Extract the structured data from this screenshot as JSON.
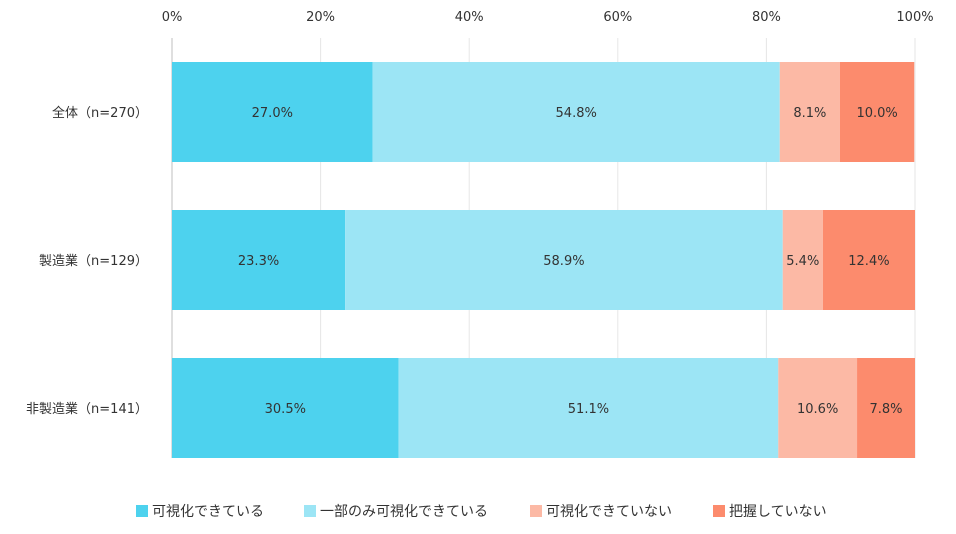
{
  "chart_data": {
    "type": "bar",
    "orientation": "horizontal",
    "stacked": true,
    "title": "",
    "xlabel": "",
    "ylabel": "",
    "xlim": [
      0,
      100
    ],
    "x_ticks": [
      "0%",
      "20%",
      "40%",
      "60%",
      "80%",
      "100%"
    ],
    "grid": true,
    "legend_position": "bottom",
    "categories": [
      "全体（n=270）",
      "製造業（n=129）",
      "非製造業（n=141）"
    ],
    "series": [
      {
        "name": "可視化できている",
        "values": [
          27.0,
          23.3,
          30.5
        ],
        "labels": [
          "27.0%",
          "23.3%",
          "30.5%"
        ],
        "color": "#4dd2ee"
      },
      {
        "name": "一部のみ可視化できている",
        "values": [
          54.8,
          58.9,
          51.1
        ],
        "labels": [
          "54.8%",
          "58.9%",
          "51.1%"
        ],
        "color": "#9ce5f5"
      },
      {
        "name": "可視化できていない",
        "values": [
          8.1,
          5.4,
          10.6
        ],
        "labels": [
          "8.1%",
          "5.4%",
          "10.6%"
        ],
        "color": "#fcb9a5"
      },
      {
        "name": "把握していない",
        "values": [
          10.0,
          12.4,
          7.8
        ],
        "labels": [
          "10.0%",
          "12.4%",
          "7.8%"
        ],
        "color": "#fc8b6d"
      }
    ]
  }
}
